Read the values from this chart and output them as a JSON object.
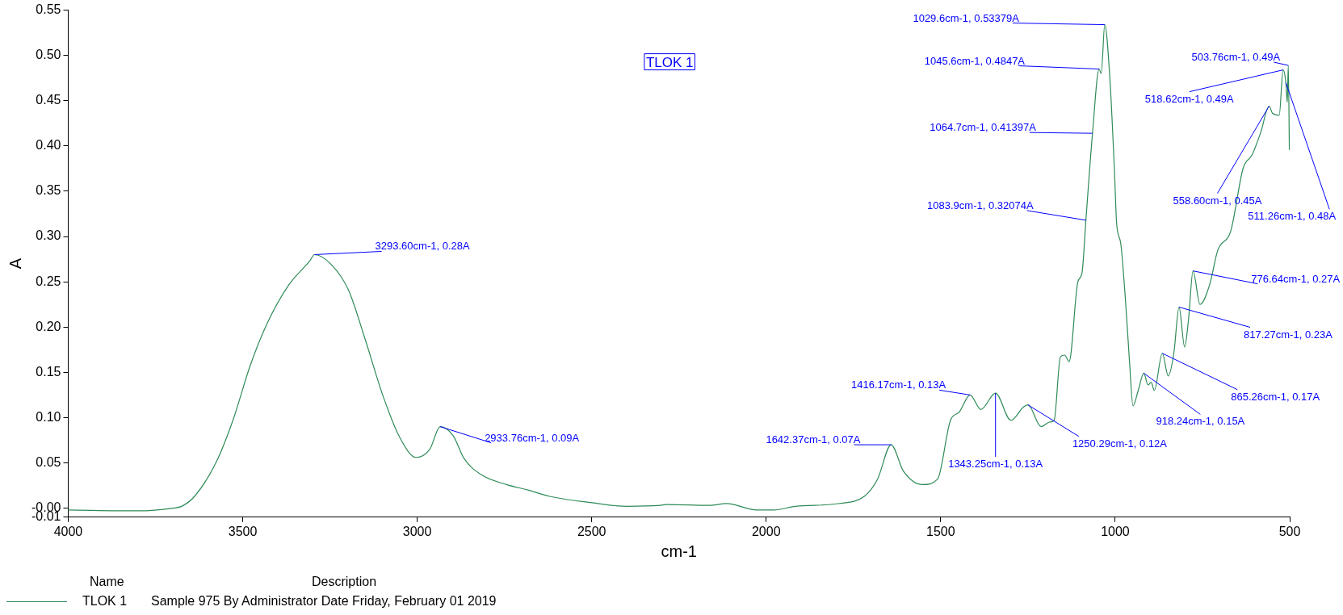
{
  "chart_data": {
    "type": "line",
    "title": "TLOK 1",
    "xlabel": "cm-1",
    "ylabel": "A",
    "legend_title": "Name",
    "legend": "bottom",
    "grid": false,
    "marker": "none",
    "line_style": "solid",
    "xlim": [
      4000,
      500
    ],
    "xticks": [
      4000,
      3500,
      3000,
      2500,
      2000,
      1500,
      1000,
      500
    ],
    "ylim": [
      -0.01,
      0.55
    ],
    "yticks": [
      -0.01,
      {
        "value": 0,
        "label": "-0.00"
      },
      0.05,
      {
        "value": 0.1,
        "label": "0.10"
      },
      0.15,
      {
        "value": 0.2,
        "label": "0.20"
      },
      0.25,
      {
        "value": 0.3,
        "label": "0.30"
      },
      0.35,
      {
        "value": 0.4,
        "label": "0.40"
      },
      0.45,
      {
        "value": 0.5,
        "label": "0.50"
      },
      0.55
    ],
    "series": [
      {
        "name": "TLOK 1",
        "color": "#2e8b57",
        "x": [
          4000,
          3800,
          3700,
          3675,
          3638,
          3577,
          3528,
          3479,
          3430,
          3369,
          3308,
          3294,
          3246,
          3197,
          3148,
          3099,
          3050,
          3003,
          2964,
          2934,
          2897,
          2866,
          2817,
          2744,
          2683,
          2621,
          2499,
          2401,
          2303,
          2286,
          2163,
          2114,
          2027,
          1978,
          1916,
          1793,
          1719,
          1681,
          1642,
          1607,
          1552,
          1509,
          1472,
          1447,
          1416,
          1385,
          1343,
          1299,
          1262,
          1250,
          1212,
          1188,
          1175,
          1157,
          1145,
          1132,
          1107,
          1095,
          1084,
          1065,
          1046,
          1040,
          1030,
          1015,
          1002,
          996,
          984,
          971,
          959,
          949,
          934,
          918,
          906,
          897,
          888,
          865,
          848,
          832,
          817,
          801,
          790,
          777,
          757,
          730,
          706,
          669,
          633,
          608,
          583,
          559,
          549,
          530,
          519,
          511,
          507,
          504,
          501
        ],
        "values": [
          -0.002,
          -0.003,
          0.0,
          0.002,
          0.013,
          0.05,
          0.097,
          0.157,
          0.204,
          0.246,
          0.273,
          0.28,
          0.269,
          0.241,
          0.185,
          0.125,
          0.078,
          0.056,
          0.065,
          0.09,
          0.08,
          0.055,
          0.037,
          0.026,
          0.02,
          0.013,
          0.006,
          0.002,
          0.003,
          0.004,
          0.003,
          0.005,
          -0.002,
          -0.002,
          0.002,
          0.005,
          0.013,
          0.032,
          0.07,
          0.041,
          0.026,
          0.032,
          0.097,
          0.106,
          0.125,
          0.109,
          0.127,
          0.097,
          0.112,
          0.114,
          0.09,
          0.095,
          0.097,
          0.167,
          0.169,
          0.162,
          0.25,
          0.26,
          0.318,
          0.414,
          0.485,
          0.48,
          0.534,
          0.473,
          0.371,
          0.315,
          0.292,
          0.232,
          0.162,
          0.113,
          0.13,
          0.149,
          0.136,
          0.139,
          0.13,
          0.171,
          0.146,
          0.171,
          0.222,
          0.178,
          0.208,
          0.262,
          0.225,
          0.246,
          0.285,
          0.306,
          0.376,
          0.39,
          0.415,
          0.444,
          0.436,
          0.434,
          0.484,
          0.47,
          0.448,
          0.489,
          0.396
        ]
      }
    ],
    "annotations": [
      {
        "text": "3293.60cm-1, 0.28A",
        "x": 3294,
        "y": 0.28
      },
      {
        "text": "2933.76cm-1, 0.09A",
        "x": 2934,
        "y": 0.09
      },
      {
        "text": "1642.37cm-1, 0.07A",
        "x": 1642,
        "y": 0.07
      },
      {
        "text": "1416.17cm-1, 0.13A",
        "x": 1416,
        "y": 0.125
      },
      {
        "text": "1343.25cm-1, 0.13A",
        "x": 1343,
        "y": 0.127
      },
      {
        "text": "1250.29cm-1, 0.12A",
        "x": 1250,
        "y": 0.114
      },
      {
        "text": "1083.9cm-1, 0.32074A",
        "x": 1084,
        "y": 0.318
      },
      {
        "text": "1064.7cm-1, 0.41397A",
        "x": 1065,
        "y": 0.414
      },
      {
        "text": "1045.6cm-1, 0.4847A",
        "x": 1046,
        "y": 0.485
      },
      {
        "text": "1029.6cm-1, 0.53379A",
        "x": 1030,
        "y": 0.534
      },
      {
        "text": "918.24cm-1, 0.15A",
        "x": 918,
        "y": 0.149
      },
      {
        "text": "865.26cm-1, 0.17A",
        "x": 865,
        "y": 0.171
      },
      {
        "text": "817.27cm-1, 0.23A",
        "x": 817,
        "y": 0.222
      },
      {
        "text": "776.64cm-1, 0.27A",
        "x": 777,
        "y": 0.262
      },
      {
        "text": "558.60cm-1, 0.45A",
        "x": 559,
        "y": 0.444
      },
      {
        "text": "518.62cm-1, 0.49A",
        "x": 519,
        "y": 0.484
      },
      {
        "text": "511.26cm-1, 0.48A",
        "x": 511,
        "y": 0.47
      },
      {
        "text": "503.76cm-1, 0.49A",
        "x": 504,
        "y": 0.489
      },
      "Description",
      "Sample 975 By Administrator Date Friday, February 01 2019"
    ]
  }
}
